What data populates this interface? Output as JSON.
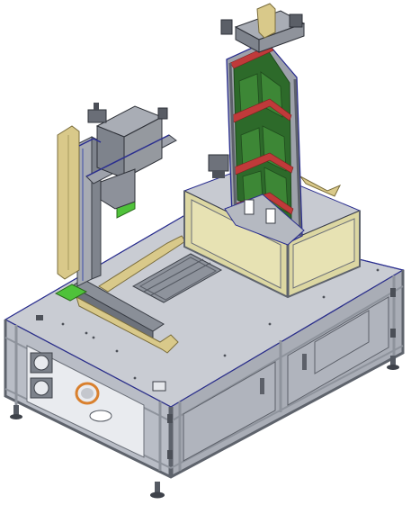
{
  "image": {
    "subject": "machine-3d-render",
    "background": "#ffffff"
  },
  "colors": {
    "frame": "#8e939c",
    "frame_dark": "#5e636c",
    "frame_light": "#c3c7cf",
    "panel": "#b9bdc6",
    "panel_dark": "#7e838d",
    "top": "#c9ccd3",
    "edge_blue": "#2b2f8f",
    "cable_tan": "#d9c98a",
    "cable_dark": "#a89a5d",
    "yellow_box": "#dcd7a2",
    "green": "#4fc23a",
    "red": "#c03a3a",
    "pcb": "#2d6a2a",
    "orange": "#d9802e"
  }
}
